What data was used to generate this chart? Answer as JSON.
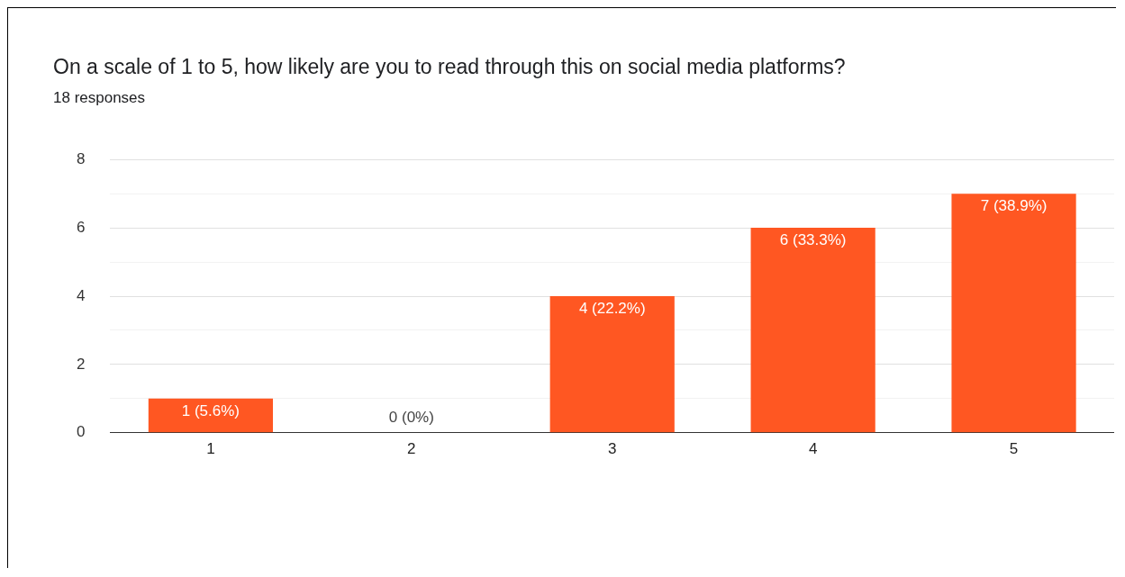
{
  "chart_data": {
    "type": "bar",
    "title": "On a scale of 1 to 5, how likely are you to read through this on social media platforms?",
    "subtitle": "18 responses",
    "categories": [
      "1",
      "2",
      "3",
      "4",
      "5"
    ],
    "values": [
      1,
      0,
      4,
      6,
      7
    ],
    "value_labels": [
      "1 (5.6%)",
      "0 (0%)",
      "4 (22.2%)",
      "6 (33.3%)",
      "7 (38.9%)"
    ],
    "color": "#ff5722",
    "ylim": [
      0,
      8
    ],
    "yticks": [
      0,
      {
        "value": 1,
        "label": null
      },
      2,
      {
        "value": 3,
        "label": null
      },
      4,
      {
        "value": 5,
        "label": null
      },
      6,
      {
        "value": 7,
        "label": null
      },
      8
    ],
    "grid": "y",
    "legend": false
  }
}
